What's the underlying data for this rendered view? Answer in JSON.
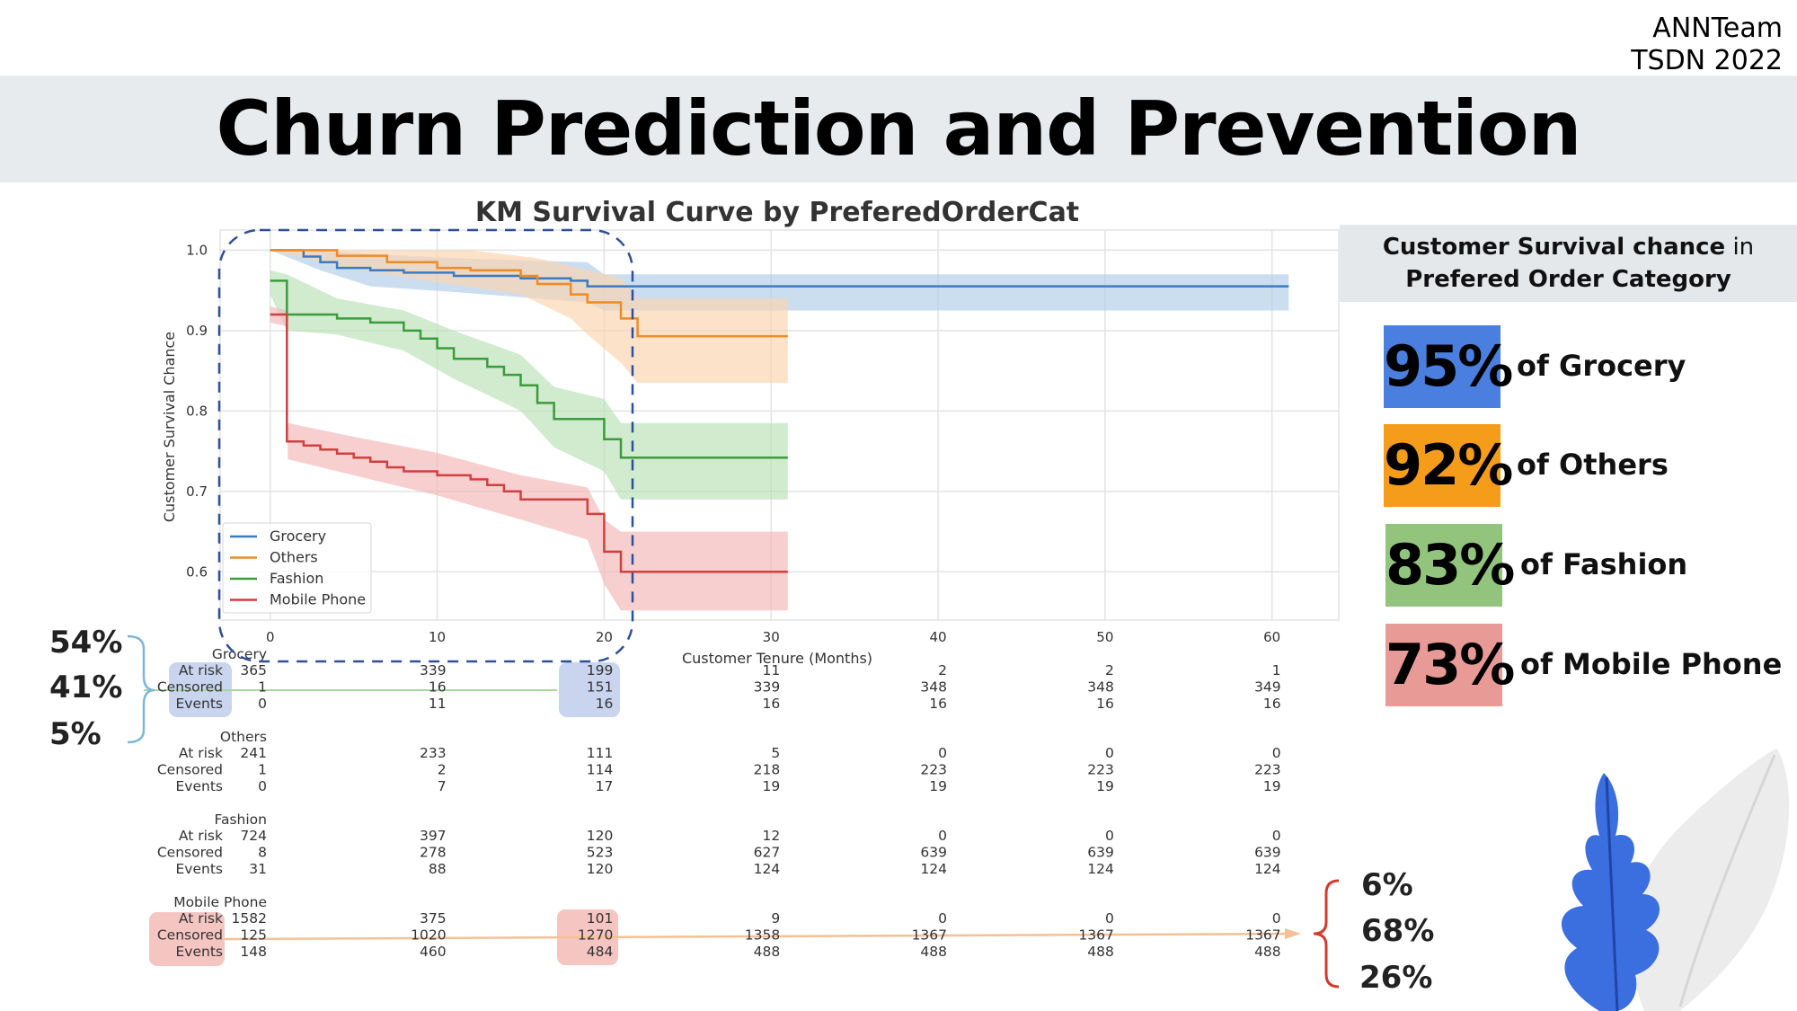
{
  "brand": {
    "line1": "ANNTeam",
    "line2": "TSDN 2022"
  },
  "page_title": "Churn Prediction and Prevention",
  "right_panel": {
    "heading_bold1": "Customer Survival chance",
    "heading_normal": " in",
    "heading_bold2": "Prefered Order Category",
    "stats": [
      {
        "value": "95%",
        "label": "of Grocery",
        "color": "#4a7fe0"
      },
      {
        "value": "92%",
        "label": "of Others",
        "color": "#f59c1a"
      },
      {
        "value": "83%",
        "label": "of Fashion",
        "color": "#93c47d"
      },
      {
        "value": "73%",
        "label": "of Mobile Phone",
        "color": "#e89a97"
      }
    ]
  },
  "left_annotation": [
    "54%",
    "41%",
    "5%"
  ],
  "right_annotation": [
    "6%",
    "68%",
    "26%"
  ],
  "chart_data": {
    "type": "line",
    "title": "KM Survival Curve by PreferedOrderCat",
    "xlabel": "Customer Tenure (Months)",
    "ylabel": "Customer Survival Chance",
    "xlim": [
      -3,
      64
    ],
    "ylim": [
      0.54,
      1.025
    ],
    "xticks": [
      0,
      10,
      20,
      30,
      40,
      50,
      60
    ],
    "yticks": [
      0.6,
      0.7,
      0.8,
      0.9,
      1.0
    ],
    "grid": true,
    "legend_position": "lower-left",
    "series": [
      {
        "name": "Grocery",
        "color": "#3b7bbf",
        "band": "#aecde6",
        "points": [
          [
            0,
            1.0
          ],
          [
            2,
            1.0
          ],
          [
            2,
            0.992
          ],
          [
            3,
            0.992
          ],
          [
            3,
            0.985
          ],
          [
            4,
            0.985
          ],
          [
            4,
            0.978
          ],
          [
            6,
            0.978
          ],
          [
            6,
            0.975
          ],
          [
            8,
            0.975
          ],
          [
            8,
            0.972
          ],
          [
            11,
            0.972
          ],
          [
            11,
            0.968
          ],
          [
            15,
            0.968
          ],
          [
            15,
            0.965
          ],
          [
            18,
            0.965
          ],
          [
            18,
            0.962
          ],
          [
            19,
            0.962
          ],
          [
            19,
            0.955
          ],
          [
            61,
            0.955
          ]
        ],
        "upper": [
          [
            0,
            1.0
          ],
          [
            3,
            1.0
          ],
          [
            6,
            0.995
          ],
          [
            11,
            0.99
          ],
          [
            19,
            0.985
          ],
          [
            20,
            0.97
          ],
          [
            61,
            0.97
          ]
        ],
        "lower": [
          [
            0,
            1.0
          ],
          [
            3,
            0.975
          ],
          [
            6,
            0.955
          ],
          [
            11,
            0.948
          ],
          [
            19,
            0.935
          ],
          [
            20,
            0.925
          ],
          [
            61,
            0.925
          ]
        ]
      },
      {
        "name": "Others",
        "color": "#f08a24",
        "band": "#fcd3ad",
        "points": [
          [
            0,
            1.0
          ],
          [
            4,
            1.0
          ],
          [
            4,
            0.993
          ],
          [
            7,
            0.993
          ],
          [
            7,
            0.985
          ],
          [
            10,
            0.985
          ],
          [
            10,
            0.978
          ],
          [
            12,
            0.978
          ],
          [
            12,
            0.975
          ],
          [
            15,
            0.975
          ],
          [
            15,
            0.968
          ],
          [
            16,
            0.968
          ],
          [
            16,
            0.958
          ],
          [
            18,
            0.958
          ],
          [
            18,
            0.945
          ],
          [
            19,
            0.945
          ],
          [
            19,
            0.935
          ],
          [
            21,
            0.935
          ],
          [
            21,
            0.915
          ],
          [
            22,
            0.915
          ],
          [
            22,
            0.893
          ],
          [
            31,
            0.893
          ]
        ],
        "upper": [
          [
            0,
            1.0
          ],
          [
            12,
            1.0
          ],
          [
            16,
            0.99
          ],
          [
            19,
            0.975
          ],
          [
            21,
            0.965
          ],
          [
            22,
            0.94
          ],
          [
            31,
            0.94
          ]
        ],
        "lower": [
          [
            0,
            1.0
          ],
          [
            4,
            0.98
          ],
          [
            10,
            0.96
          ],
          [
            15,
            0.945
          ],
          [
            18,
            0.915
          ],
          [
            19,
            0.895
          ],
          [
            21,
            0.86
          ],
          [
            22,
            0.835
          ],
          [
            31,
            0.835
          ]
        ]
      },
      {
        "name": "Fashion",
        "color": "#3a9c3a",
        "band": "#b9e1b5",
        "points": [
          [
            0,
            0.962
          ],
          [
            1,
            0.962
          ],
          [
            1,
            0.92
          ],
          [
            4,
            0.92
          ],
          [
            4,
            0.915
          ],
          [
            6,
            0.915
          ],
          [
            6,
            0.91
          ],
          [
            8,
            0.91
          ],
          [
            8,
            0.9
          ],
          [
            9,
            0.9
          ],
          [
            9,
            0.89
          ],
          [
            10,
            0.89
          ],
          [
            10,
            0.878
          ],
          [
            11,
            0.878
          ],
          [
            11,
            0.865
          ],
          [
            13,
            0.865
          ],
          [
            13,
            0.855
          ],
          [
            14,
            0.855
          ],
          [
            14,
            0.845
          ],
          [
            15,
            0.845
          ],
          [
            15,
            0.832
          ],
          [
            16,
            0.832
          ],
          [
            16,
            0.81
          ],
          [
            17,
            0.81
          ],
          [
            17,
            0.79
          ],
          [
            20,
            0.79
          ],
          [
            20,
            0.765
          ],
          [
            21,
            0.765
          ],
          [
            21,
            0.742
          ],
          [
            31,
            0.742
          ]
        ],
        "upper": [
          [
            0,
            0.975
          ],
          [
            1,
            0.97
          ],
          [
            4,
            0.94
          ],
          [
            8,
            0.925
          ],
          [
            11,
            0.9
          ],
          [
            15,
            0.87
          ],
          [
            17,
            0.83
          ],
          [
            20,
            0.815
          ],
          [
            21,
            0.785
          ],
          [
            31,
            0.785
          ]
        ],
        "lower": [
          [
            0,
            0.945
          ],
          [
            1,
            0.9
          ],
          [
            4,
            0.895
          ],
          [
            8,
            0.875
          ],
          [
            11,
            0.84
          ],
          [
            15,
            0.8
          ],
          [
            17,
            0.755
          ],
          [
            20,
            0.725
          ],
          [
            21,
            0.69
          ],
          [
            31,
            0.69
          ]
        ]
      },
      {
        "name": "Mobile Phone",
        "color": "#d23f3f",
        "band": "#f3b5b5",
        "points": [
          [
            0,
            0.92
          ],
          [
            1,
            0.92
          ],
          [
            1,
            0.762
          ],
          [
            2,
            0.762
          ],
          [
            2,
            0.757
          ],
          [
            3,
            0.757
          ],
          [
            3,
            0.752
          ],
          [
            4,
            0.752
          ],
          [
            4,
            0.747
          ],
          [
            5,
            0.747
          ],
          [
            5,
            0.742
          ],
          [
            6,
            0.742
          ],
          [
            6,
            0.737
          ],
          [
            7,
            0.737
          ],
          [
            7,
            0.73
          ],
          [
            8,
            0.73
          ],
          [
            8,
            0.725
          ],
          [
            10,
            0.725
          ],
          [
            10,
            0.72
          ],
          [
            12,
            0.72
          ],
          [
            12,
            0.715
          ],
          [
            13,
            0.715
          ],
          [
            13,
            0.708
          ],
          [
            14,
            0.708
          ],
          [
            14,
            0.7
          ],
          [
            15,
            0.7
          ],
          [
            15,
            0.69
          ],
          [
            19,
            0.69
          ],
          [
            19,
            0.672
          ],
          [
            20,
            0.672
          ],
          [
            20,
            0.625
          ],
          [
            21,
            0.625
          ],
          [
            21,
            0.6
          ],
          [
            31,
            0.6
          ]
        ],
        "upper": [
          [
            0,
            0.93
          ],
          [
            1,
            0.925
          ],
          [
            1.05,
            0.785
          ],
          [
            5,
            0.768
          ],
          [
            10,
            0.748
          ],
          [
            15,
            0.72
          ],
          [
            19,
            0.705
          ],
          [
            20,
            0.665
          ],
          [
            21,
            0.65
          ],
          [
            31,
            0.65
          ]
        ],
        "lower": [
          [
            0,
            0.91
          ],
          [
            1,
            0.905
          ],
          [
            1.05,
            0.74
          ],
          [
            5,
            0.72
          ],
          [
            10,
            0.695
          ],
          [
            15,
            0.665
          ],
          [
            19,
            0.64
          ],
          [
            20,
            0.585
          ],
          [
            21,
            0.552
          ],
          [
            31,
            0.552
          ]
        ]
      }
    ],
    "at_risk_table": {
      "times": [
        0,
        10,
        20,
        30,
        40,
        50,
        60
      ],
      "groups": [
        {
          "name": "Grocery",
          "at_risk": [
            365,
            339,
            199,
            11,
            2,
            2,
            1
          ],
          "censored": [
            1,
            16,
            151,
            339,
            348,
            348,
            349
          ],
          "events": [
            0,
            11,
            16,
            16,
            16,
            16,
            16
          ]
        },
        {
          "name": "Others",
          "at_risk": [
            241,
            233,
            111,
            5,
            0,
            0,
            0
          ],
          "censored": [
            1,
            2,
            114,
            218,
            223,
            223,
            223
          ],
          "events": [
            0,
            7,
            17,
            19,
            19,
            19,
            19
          ]
        },
        {
          "name": "Fashion",
          "at_risk": [
            724,
            397,
            120,
            12,
            0,
            0,
            0
          ],
          "censored": [
            8,
            278,
            523,
            627,
            639,
            639,
            639
          ],
          "events": [
            31,
            88,
            120,
            124,
            124,
            124,
            124
          ]
        },
        {
          "name": "Mobile Phone",
          "at_risk": [
            1582,
            375,
            101,
            9,
            0,
            0,
            0
          ],
          "censored": [
            125,
            1020,
            1270,
            1358,
            1367,
            1367,
            1367
          ],
          "events": [
            148,
            460,
            484,
            488,
            488,
            488,
            488
          ]
        }
      ],
      "row_labels": [
        "At risk",
        "Censored",
        "Events"
      ]
    }
  }
}
